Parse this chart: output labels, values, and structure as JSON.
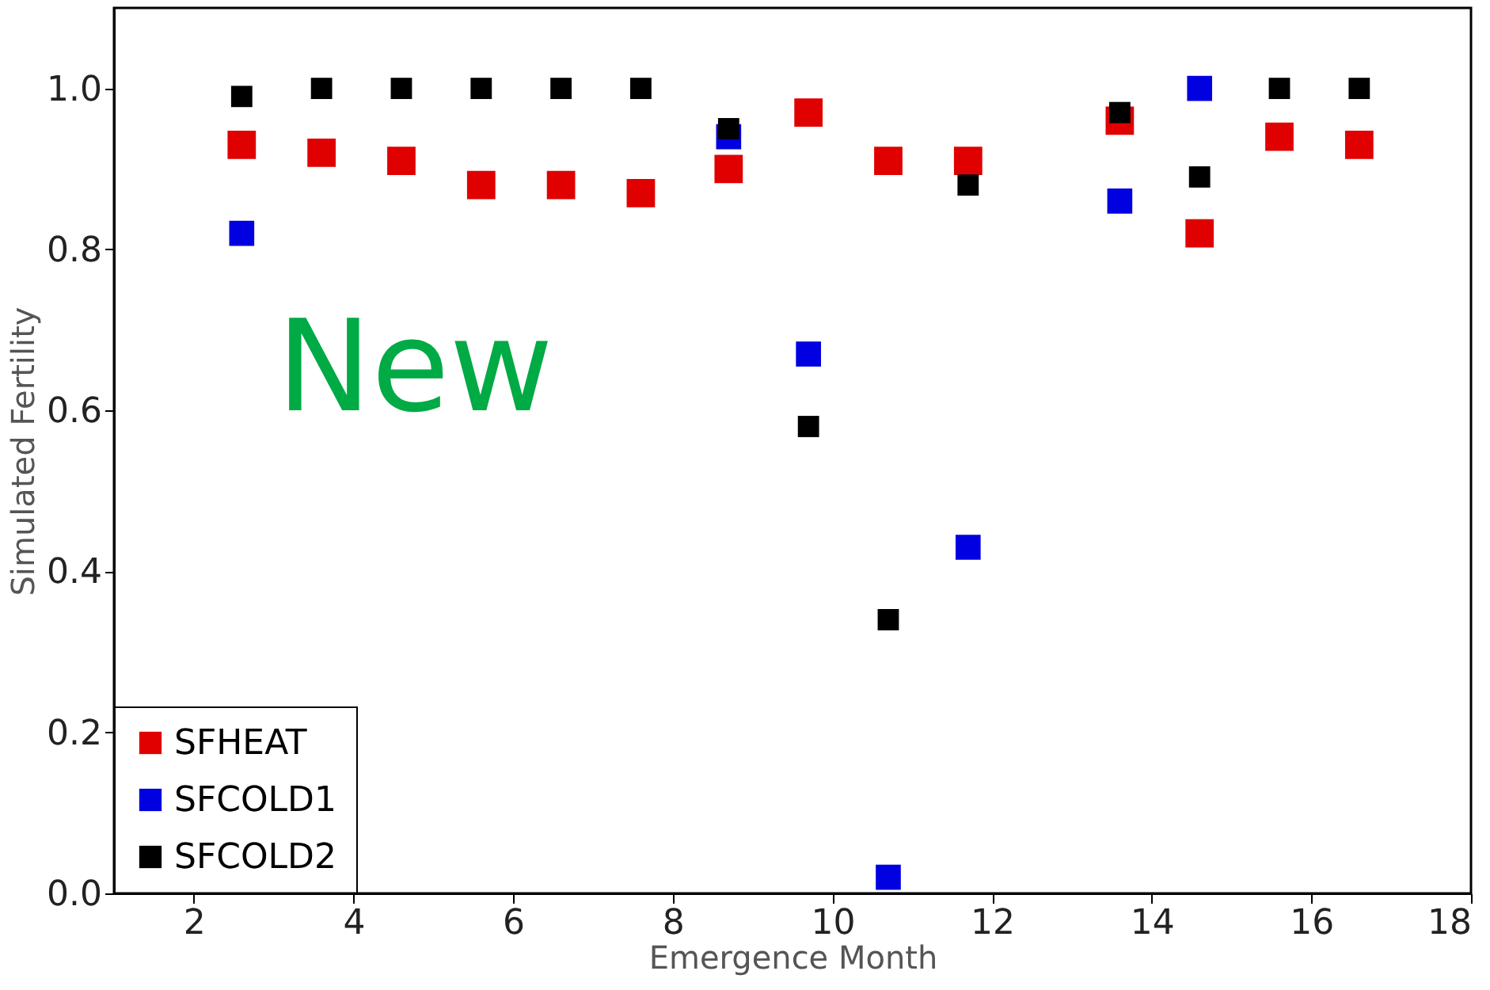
{
  "chart_data": {
    "type": "scatter",
    "xlabel": "Emergence Month",
    "ylabel": "Simulated Fertility",
    "annotations": [
      "New"
    ],
    "x": [
      2.6,
      3.6,
      4.6,
      5.6,
      6.6,
      7.6,
      8.7,
      9.7,
      10.7,
      11.7,
      13.6,
      14.6,
      15.6,
      16.6
    ],
    "series": [
      {
        "name": "SFHEAT",
        "color": "#e00000",
        "values": [
          0.93,
          0.92,
          0.91,
          0.88,
          0.88,
          0.87,
          0.9,
          0.97,
          0.91,
          0.91,
          0.96,
          0.82,
          0.94,
          0.93
        ]
      },
      {
        "name": "SFCOLD1",
        "color": "#0000e0",
        "values": [
          0.82,
          null,
          null,
          null,
          null,
          null,
          0.94,
          0.67,
          0.02,
          0.43,
          0.86,
          1.0,
          null,
          null
        ]
      },
      {
        "name": "SFCOLD2",
        "color": "#000000",
        "values": [
          0.99,
          1.0,
          1.0,
          1.0,
          1.0,
          1.0,
          0.95,
          0.58,
          0.34,
          0.88,
          0.97,
          0.89,
          1.0,
          1.0
        ]
      }
    ],
    "xlim": [
      1,
      18
    ],
    "ylim": [
      0,
      1.1
    ],
    "xticks": [
      2,
      4,
      6,
      8,
      10,
      12,
      14,
      16,
      18
    ],
    "yticks": [
      {
        "value": 0,
        "label": "0.0"
      },
      {
        "value": 0.2,
        "label": "0.2"
      },
      {
        "value": 0.4,
        "label": "0.4"
      },
      {
        "value": 0.6,
        "label": "0.6"
      },
      {
        "value": 0.8,
        "label": "0.8"
      },
      {
        "value": 1.0,
        "label": "1.0"
      }
    ],
    "marker": "square",
    "legend": "bottom left",
    "grid": false
  }
}
